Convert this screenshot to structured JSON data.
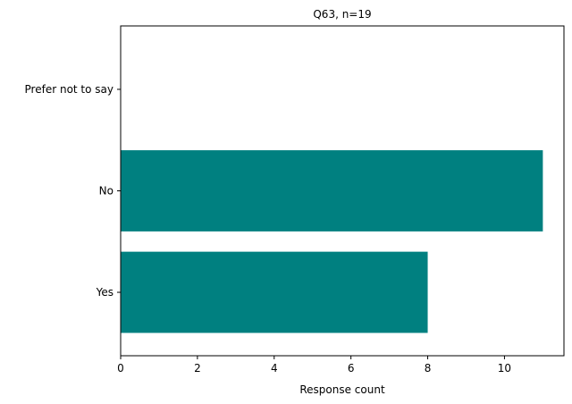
{
  "chart_data": {
    "type": "bar",
    "orientation": "horizontal",
    "title": "Q63, n=19",
    "xlabel": "Response count",
    "ylabel": "",
    "categories": [
      "Yes",
      "No",
      "Prefer not to say"
    ],
    "values": [
      8,
      11,
      0
    ],
    "xlim": [
      0,
      11.55
    ],
    "xticks": [
      0,
      2,
      4,
      6,
      8,
      10
    ],
    "grid": false,
    "legend": "none",
    "bar_color": "#008080"
  }
}
